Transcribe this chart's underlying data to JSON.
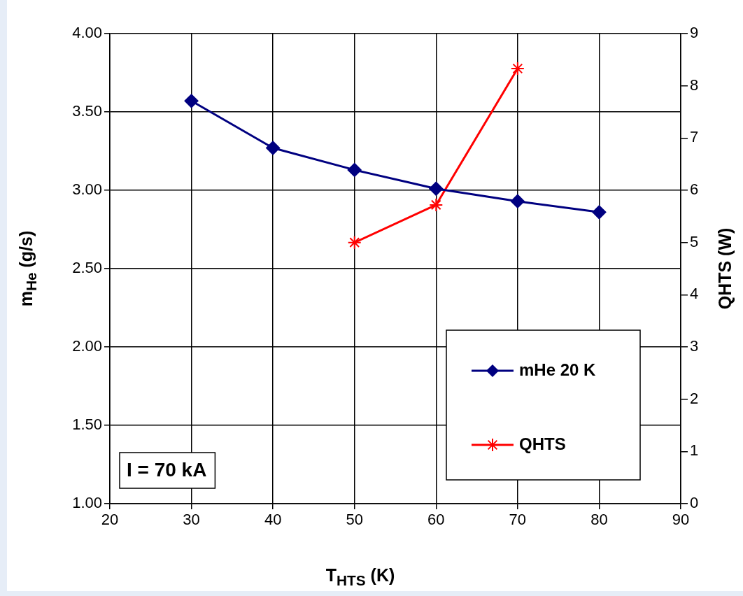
{
  "chart_data": {
    "type": "line",
    "xlabel": "T$_{HTS}$ (K)",
    "ylabel": "m$_{He}$ (g/s)",
    "y2label": "QHTS (W)",
    "x": [
      30,
      40,
      50,
      60,
      70,
      80
    ],
    "series": [
      {
        "name": "mHe 20 K",
        "color": "#000080",
        "marker": "diamond",
        "values": [
          3.57,
          3.27,
          3.13,
          3.01,
          2.93,
          2.86
        ]
      },
      {
        "name": "QHTS",
        "color": "#ff0000",
        "marker": "cross",
        "axis": "y2",
        "x": [
          50,
          60,
          70
        ],
        "values": [
          5.0,
          5.72,
          8.33
        ]
      }
    ],
    "xlim": [
      20,
      90
    ],
    "xticks": [
      20,
      30,
      40,
      50,
      60,
      70,
      80,
      90
    ],
    "ylim": [
      1,
      4
    ],
    "yticks": [
      {
        "value": 1,
        "label": "1.00"
      },
      {
        "value": 1.5,
        "label": "1.50"
      },
      {
        "value": 2,
        "label": "2.00"
      },
      {
        "value": 2.5,
        "label": "2.50"
      },
      {
        "value": 3,
        "label": "3.00"
      },
      {
        "value": 3.5,
        "label": "3.50"
      },
      {
        "value": 4,
        "label": "4.00"
      }
    ],
    "y2lim": [
      0,
      9
    ],
    "y2ticks": [
      0,
      1,
      2,
      3,
      4,
      5,
      6,
      7,
      8,
      9
    ],
    "annotations": [
      "I = 70 kA"
    ],
    "grid": true,
    "legend": "bottom right",
    "line_style": "solid"
  }
}
